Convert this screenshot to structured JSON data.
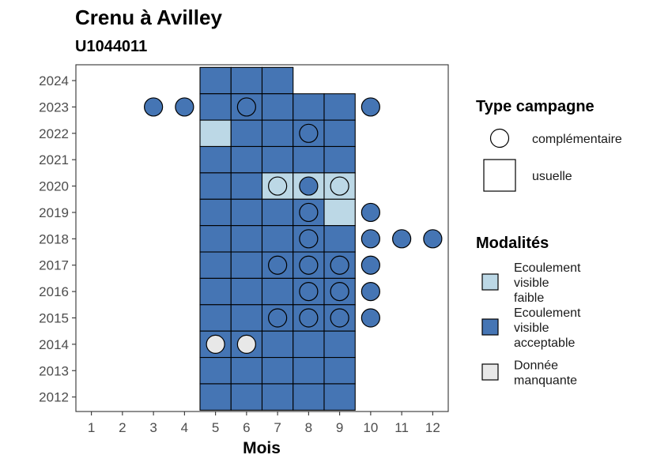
{
  "chart_data": {
    "type": "heatmap",
    "title": "Crenu à Avilley",
    "subtitle": "U1044011",
    "xlabel": "Mois",
    "ylabel": "",
    "x_ticks": [
      1,
      2,
      3,
      4,
      5,
      6,
      7,
      8,
      9,
      10,
      11,
      12
    ],
    "y_ticks": [
      2012,
      2013,
      2014,
      2015,
      2016,
      2017,
      2018,
      2019,
      2020,
      2021,
      2022,
      2023,
      2024
    ],
    "xlim": [
      0.5,
      12.5
    ],
    "ylim": [
      2011.45,
      2024.6
    ],
    "colors": {
      "Ecoulement visible faible": "#bcd8e6",
      "Ecoulement visible acceptable": "#4575b4",
      "Donnée manquante": "#e8e8e8"
    },
    "tiles": [
      {
        "year": 2024,
        "month": 5,
        "modalite": "Ecoulement visible acceptable"
      },
      {
        "year": 2024,
        "month": 6,
        "modalite": "Ecoulement visible acceptable"
      },
      {
        "year": 2024,
        "month": 7,
        "modalite": "Ecoulement visible acceptable"
      },
      {
        "year": 2023,
        "month": 5,
        "modalite": "Ecoulement visible acceptable"
      },
      {
        "year": 2023,
        "month": 6,
        "modalite": "Ecoulement visible acceptable"
      },
      {
        "year": 2023,
        "month": 7,
        "modalite": "Ecoulement visible acceptable"
      },
      {
        "year": 2023,
        "month": 8,
        "modalite": "Ecoulement visible acceptable"
      },
      {
        "year": 2023,
        "month": 9,
        "modalite": "Ecoulement visible acceptable"
      },
      {
        "year": 2022,
        "month": 5,
        "modalite": "Ecoulement visible faible"
      },
      {
        "year": 2022,
        "month": 6,
        "modalite": "Ecoulement visible acceptable"
      },
      {
        "year": 2022,
        "month": 7,
        "modalite": "Ecoulement visible acceptable"
      },
      {
        "year": 2022,
        "month": 8,
        "modalite": "Ecoulement visible acceptable"
      },
      {
        "year": 2022,
        "month": 9,
        "modalite": "Ecoulement visible acceptable"
      },
      {
        "year": 2021,
        "month": 5,
        "modalite": "Ecoulement visible acceptable"
      },
      {
        "year": 2021,
        "month": 6,
        "modalite": "Ecoulement visible acceptable"
      },
      {
        "year": 2021,
        "month": 7,
        "modalite": "Ecoulement visible acceptable"
      },
      {
        "year": 2021,
        "month": 8,
        "modalite": "Ecoulement visible acceptable"
      },
      {
        "year": 2021,
        "month": 9,
        "modalite": "Ecoulement visible acceptable"
      },
      {
        "year": 2020,
        "month": 5,
        "modalite": "Ecoulement visible acceptable"
      },
      {
        "year": 2020,
        "month": 6,
        "modalite": "Ecoulement visible acceptable"
      },
      {
        "year": 2020,
        "month": 7,
        "modalite": "Ecoulement visible faible"
      },
      {
        "year": 2020,
        "month": 8,
        "modalite": "Ecoulement visible faible"
      },
      {
        "year": 2020,
        "month": 9,
        "modalite": "Ecoulement visible faible"
      },
      {
        "year": 2019,
        "month": 5,
        "modalite": "Ecoulement visible acceptable"
      },
      {
        "year": 2019,
        "month": 6,
        "modalite": "Ecoulement visible acceptable"
      },
      {
        "year": 2019,
        "month": 7,
        "modalite": "Ecoulement visible acceptable"
      },
      {
        "year": 2019,
        "month": 8,
        "modalite": "Ecoulement visible acceptable"
      },
      {
        "year": 2019,
        "month": 9,
        "modalite": "Ecoulement visible faible"
      },
      {
        "year": 2018,
        "month": 5,
        "modalite": "Ecoulement visible acceptable"
      },
      {
        "year": 2018,
        "month": 6,
        "modalite": "Ecoulement visible acceptable"
      },
      {
        "year": 2018,
        "month": 7,
        "modalite": "Ecoulement visible acceptable"
      },
      {
        "year": 2018,
        "month": 8,
        "modalite": "Ecoulement visible acceptable"
      },
      {
        "year": 2018,
        "month": 9,
        "modalite": "Ecoulement visible acceptable"
      },
      {
        "year": 2017,
        "month": 5,
        "modalite": "Ecoulement visible acceptable"
      },
      {
        "year": 2017,
        "month": 6,
        "modalite": "Ecoulement visible acceptable"
      },
      {
        "year": 2017,
        "month": 7,
        "modalite": "Ecoulement visible acceptable"
      },
      {
        "year": 2017,
        "month": 8,
        "modalite": "Ecoulement visible acceptable"
      },
      {
        "year": 2017,
        "month": 9,
        "modalite": "Ecoulement visible acceptable"
      },
      {
        "year": 2016,
        "month": 5,
        "modalite": "Ecoulement visible acceptable"
      },
      {
        "year": 2016,
        "month": 6,
        "modalite": "Ecoulement visible acceptable"
      },
      {
        "year": 2016,
        "month": 7,
        "modalite": "Ecoulement visible acceptable"
      },
      {
        "year": 2016,
        "month": 8,
        "modalite": "Ecoulement visible acceptable"
      },
      {
        "year": 2016,
        "month": 9,
        "modalite": "Ecoulement visible acceptable"
      },
      {
        "year": 2015,
        "month": 5,
        "modalite": "Ecoulement visible acceptable"
      },
      {
        "year": 2015,
        "month": 6,
        "modalite": "Ecoulement visible acceptable"
      },
      {
        "year": 2015,
        "month": 7,
        "modalite": "Ecoulement visible acceptable"
      },
      {
        "year": 2015,
        "month": 8,
        "modalite": "Ecoulement visible acceptable"
      },
      {
        "year": 2015,
        "month": 9,
        "modalite": "Ecoulement visible acceptable"
      },
      {
        "year": 2014,
        "month": 5,
        "modalite": "Ecoulement visible acceptable"
      },
      {
        "year": 2014,
        "month": 6,
        "modalite": "Ecoulement visible acceptable"
      },
      {
        "year": 2014,
        "month": 7,
        "modalite": "Ecoulement visible acceptable"
      },
      {
        "year": 2014,
        "month": 8,
        "modalite": "Ecoulement visible acceptable"
      },
      {
        "year": 2014,
        "month": 9,
        "modalite": "Ecoulement visible acceptable"
      },
      {
        "year": 2013,
        "month": 5,
        "modalite": "Ecoulement visible acceptable"
      },
      {
        "year": 2013,
        "month": 6,
        "modalite": "Ecoulement visible acceptable"
      },
      {
        "year": 2013,
        "month": 7,
        "modalite": "Ecoulement visible acceptable"
      },
      {
        "year": 2013,
        "month": 8,
        "modalite": "Ecoulement visible acceptable"
      },
      {
        "year": 2013,
        "month": 9,
        "modalite": "Ecoulement visible acceptable"
      },
      {
        "year": 2012,
        "month": 5,
        "modalite": "Ecoulement visible acceptable"
      },
      {
        "year": 2012,
        "month": 6,
        "modalite": "Ecoulement visible acceptable"
      },
      {
        "year": 2012,
        "month": 7,
        "modalite": "Ecoulement visible acceptable"
      },
      {
        "year": 2012,
        "month": 8,
        "modalite": "Ecoulement visible acceptable"
      },
      {
        "year": 2012,
        "month": 9,
        "modalite": "Ecoulement visible acceptable"
      }
    ],
    "points": [
      {
        "year": 2023,
        "month": 3,
        "modalite": "Ecoulement visible acceptable"
      },
      {
        "year": 2023,
        "month": 4,
        "modalite": "Ecoulement visible acceptable"
      },
      {
        "year": 2023,
        "month": 6,
        "modalite": "Ecoulement visible acceptable"
      },
      {
        "year": 2023,
        "month": 10,
        "modalite": "Ecoulement visible acceptable"
      },
      {
        "year": 2022,
        "month": 8,
        "modalite": "Ecoulement visible acceptable"
      },
      {
        "year": 2020,
        "month": 7,
        "modalite": "Ecoulement visible faible"
      },
      {
        "year": 2020,
        "month": 8,
        "modalite": "Ecoulement visible acceptable"
      },
      {
        "year": 2020,
        "month": 9,
        "modalite": "Ecoulement visible faible"
      },
      {
        "year": 2019,
        "month": 8,
        "modalite": "Ecoulement visible acceptable"
      },
      {
        "year": 2019,
        "month": 10,
        "modalite": "Ecoulement visible acceptable"
      },
      {
        "year": 2018,
        "month": 8,
        "modalite": "Ecoulement visible acceptable"
      },
      {
        "year": 2018,
        "month": 10,
        "modalite": "Ecoulement visible acceptable"
      },
      {
        "year": 2018,
        "month": 11,
        "modalite": "Ecoulement visible acceptable"
      },
      {
        "year": 2018,
        "month": 12,
        "modalite": "Ecoulement visible acceptable"
      },
      {
        "year": 2017,
        "month": 7,
        "modalite": "Ecoulement visible acceptable"
      },
      {
        "year": 2017,
        "month": 8,
        "modalite": "Ecoulement visible acceptable"
      },
      {
        "year": 2017,
        "month": 9,
        "modalite": "Ecoulement visible acceptable"
      },
      {
        "year": 2017,
        "month": 10,
        "modalite": "Ecoulement visible acceptable"
      },
      {
        "year": 2016,
        "month": 8,
        "modalite": "Ecoulement visible acceptable"
      },
      {
        "year": 2016,
        "month": 9,
        "modalite": "Ecoulement visible acceptable"
      },
      {
        "year": 2016,
        "month": 10,
        "modalite": "Ecoulement visible acceptable"
      },
      {
        "year": 2015,
        "month": 7,
        "modalite": "Ecoulement visible acceptable"
      },
      {
        "year": 2015,
        "month": 8,
        "modalite": "Ecoulement visible acceptable"
      },
      {
        "year": 2015,
        "month": 9,
        "modalite": "Ecoulement visible acceptable"
      },
      {
        "year": 2015,
        "month": 10,
        "modalite": "Ecoulement visible acceptable"
      },
      {
        "year": 2014,
        "month": 5,
        "modalite": "Donnée manquante"
      },
      {
        "year": 2014,
        "month": 6,
        "modalite": "Donnée manquante"
      }
    ],
    "legend": {
      "type_title": "Type campagne",
      "type_items": [
        {
          "label": "complémentaire",
          "shape": "circle"
        },
        {
          "label": "usuelle",
          "shape": "square"
        }
      ],
      "mod_title": "Modalités",
      "mod_items": [
        {
          "lines": [
            "Ecoulement",
            "visible",
            "faible"
          ],
          "color": "#bcd8e6"
        },
        {
          "lines": [
            "Ecoulement",
            "visible",
            "acceptable"
          ],
          "color": "#4575b4"
        },
        {
          "lines": [
            "Donnée",
            "manquante"
          ],
          "color": "#e8e8e8"
        }
      ],
      "placement": "right"
    }
  }
}
